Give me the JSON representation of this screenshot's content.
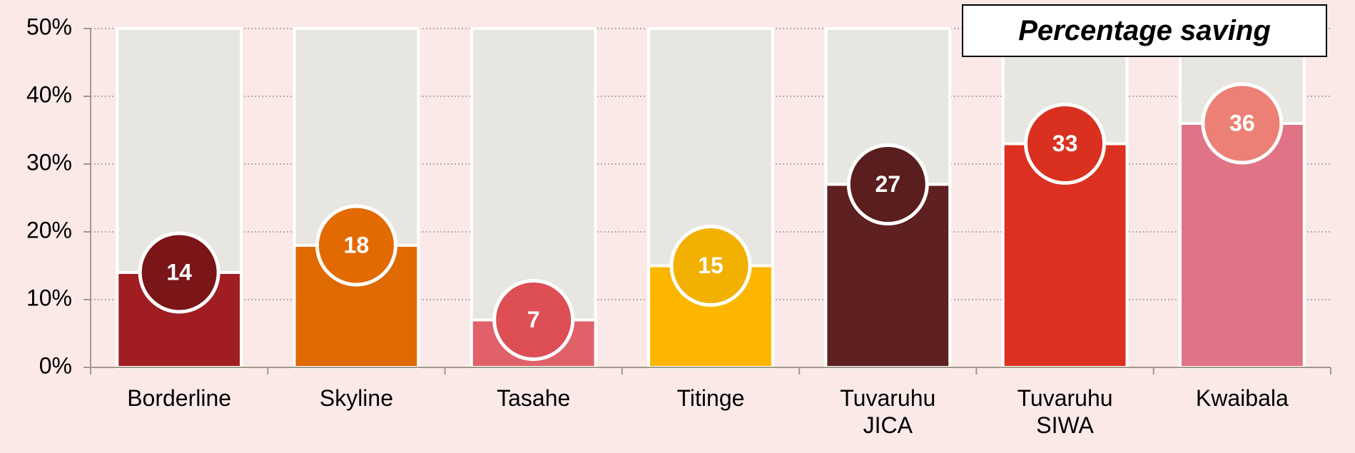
{
  "chart_data": {
    "type": "bar",
    "title": "Percentage saving",
    "categories": [
      "Borderline",
      "Skyline",
      "Tasahe",
      "Titinge",
      "Tuvaruhu JICA",
      "Tuvaruhu SIWA",
      "Kwaibala"
    ],
    "values": [
      14,
      18,
      7,
      15,
      27,
      33,
      36
    ],
    "colors": [
      "#a01e22",
      "#de6a00",
      "#e0616a",
      "#fdb600",
      "#5e2020",
      "#dc3120",
      "#e07385"
    ],
    "label_colors": [
      "#7a1518",
      "#e36a00",
      "#dd4e55",
      "#f2b000",
      "#5a1e1e",
      "#d9301f",
      "#ec8075"
    ],
    "background_color": "#e8e6e1",
    "ylim": [
      0,
      50
    ],
    "yticks": [
      {
        "value": 0,
        "label": "0%"
      },
      {
        "value": 10,
        "label": "10%"
      },
      {
        "value": 20,
        "label": "20%"
      },
      {
        "value": 30,
        "label": "30%"
      },
      {
        "value": 40,
        "label": "40%"
      },
      {
        "value": 50,
        "label": "50%"
      }
    ],
    "grid": true
  }
}
